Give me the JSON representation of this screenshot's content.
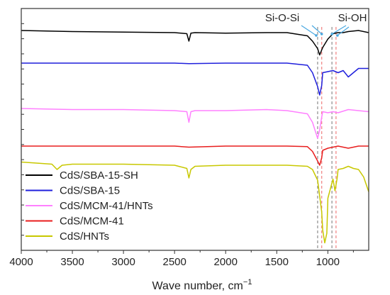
{
  "chart_data": {
    "type": "line",
    "xlabel": "Wave number, cm",
    "xlabel_superscript": "−1",
    "x_reversed": true,
    "xlim": [
      4000,
      600
    ],
    "x_ticks": [
      4000,
      3500,
      3000,
      2500,
      2000,
      1500,
      1000
    ],
    "y_ticks_shown": false,
    "legend_position": "left",
    "annotations": [
      {
        "text": "Si-O-Si",
        "near_x": 1080
      },
      {
        "text": "Si-OH",
        "near_x": 960
      }
    ],
    "reference_lines": [
      {
        "x": 1100,
        "color": "#8c8c8c"
      },
      {
        "x": 1060,
        "color": "#f08080"
      },
      {
        "x": 960,
        "color": "#8c8c8c"
      },
      {
        "x": 920,
        "color": "#f08080"
      }
    ],
    "series": [
      {
        "name": "CdS/SBA-15-SH",
        "color": "#000000",
        "x": [
          4000,
          3500,
          3000,
          2500,
          2380,
          2360,
          2340,
          2300,
          2000,
          1600,
          1400,
          1200,
          1150,
          1100,
          1080,
          1050,
          1000,
          950,
          900,
          850,
          800,
          700,
          600
        ],
        "y": [
          2.5,
          2.4,
          2.35,
          2.3,
          2.2,
          1.5,
          2.25,
          2.3,
          2.25,
          2.3,
          2.3,
          2.0,
          1.5,
          0.8,
          0.2,
          0.9,
          1.7,
          2.2,
          2.3,
          2.3,
          2.4,
          2.5,
          2.3
        ]
      },
      {
        "name": "CdS/SBA-15",
        "color": "#1f1fdc",
        "x": [
          4000,
          3500,
          3000,
          2500,
          2360,
          2000,
          1600,
          1400,
          1300,
          1200,
          1150,
          1100,
          1080,
          1060,
          1050,
          1000,
          950,
          900,
          850,
          800,
          700,
          600
        ],
        "y": [
          2.5,
          2.5,
          2.5,
          2.5,
          2.45,
          2.5,
          2.5,
          2.5,
          2.4,
          2.3,
          1.6,
          0.3,
          -0.5,
          0.4,
          1.6,
          1.7,
          1.8,
          1.6,
          1.8,
          1.2,
          2.0,
          2.0
        ]
      },
      {
        "name": "CdS/MCM-41/HNTs",
        "color": "#ff80ff",
        "x": [
          4000,
          3500,
          3000,
          2500,
          2380,
          2360,
          2340,
          2300,
          2000,
          1600,
          1400,
          1200,
          1150,
          1100,
          1080,
          1060,
          1050,
          1000,
          950,
          900,
          800,
          700,
          600
        ],
        "y": [
          2.3,
          2.2,
          2.2,
          2.1,
          2.0,
          1.0,
          2.0,
          2.1,
          2.1,
          2.2,
          2.1,
          1.8,
          1.0,
          -0.5,
          0.3,
          1.5,
          2.0,
          1.9,
          2.0,
          1.9,
          2.2,
          2.1,
          2.0
        ]
      },
      {
        "name": "CdS/MCM-41",
        "color": "#e81e1e",
        "x": [
          4000,
          3500,
          3000,
          2500,
          2360,
          2000,
          1600,
          1400,
          1200,
          1150,
          1100,
          1080,
          1060,
          1050,
          1000,
          950,
          900,
          800,
          700,
          600
        ],
        "y": [
          2.3,
          2.3,
          2.3,
          2.3,
          2.2,
          2.3,
          2.3,
          2.3,
          2.25,
          1.8,
          0.9,
          0.5,
          1.2,
          1.9,
          2.1,
          2.2,
          2.3,
          2.1,
          2.3,
          2.3
        ]
      },
      {
        "name": "CdS/HNTs",
        "color": "#c8c800",
        "x": [
          4000,
          3700,
          3650,
          3600,
          3500,
          3000,
          2500,
          2380,
          2360,
          2340,
          2300,
          2000,
          1600,
          1400,
          1200,
          1150,
          1100,
          1080,
          1060,
          1050,
          1030,
          1010,
          1000,
          950,
          930,
          910,
          900,
          850,
          800,
          750,
          700,
          650,
          600
        ],
        "y": [
          3.2,
          3.0,
          2.5,
          2.9,
          3.0,
          3.0,
          2.9,
          2.6,
          1.7,
          2.5,
          2.8,
          2.9,
          2.9,
          2.9,
          2.8,
          2.5,
          1.5,
          0.0,
          -1.5,
          -3.2,
          -4.4,
          -3.5,
          -0.2,
          1.6,
          0.5,
          1.6,
          2.5,
          2.6,
          2.8,
          2.6,
          2.5,
          1.8,
          0.4
        ]
      }
    ]
  }
}
